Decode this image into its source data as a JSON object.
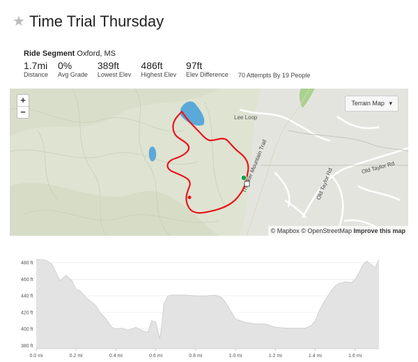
{
  "page": {
    "title": "Time Trial Thursday",
    "star_icon": "star-icon"
  },
  "segment": {
    "kind": "Ride Segment",
    "location": "Oxford, MS"
  },
  "stats": [
    {
      "value": "1.7mi",
      "label": "Distance"
    },
    {
      "value": "0%",
      "label": "Avg Grade"
    },
    {
      "value": "389ft",
      "label": "Lowest Elev"
    },
    {
      "value": "486ft",
      "label": "Highest Elev"
    },
    {
      "value": "97ft",
      "label": "Elev Difference"
    }
  ],
  "attempts": "70 Attempts By 19 People",
  "map": {
    "zoom_in": "+",
    "zoom_out": "−",
    "map_type": "Terrain Map",
    "roads": [
      "Lee Loop",
      "Thacker Mountain Trail",
      "Old Taylor Rd",
      "Old Taylor Rd"
    ],
    "attribution": {
      "mapbox": "© Mapbox",
      "osm": "© OpenStreetMap",
      "improve": "Improve this map"
    },
    "route_color": "#e8141b",
    "water_color": "#5aa9d9"
  },
  "chart_data": {
    "type": "area",
    "title": "",
    "xlabel": "",
    "ylabel": "",
    "x_ticks": [
      "0.0 mi",
      "0.2 mi",
      "0.4 mi",
      "0.6 mi",
      "0.8 mi",
      "1.0 mi",
      "1.2 mi",
      "1.4 mi",
      "1.6 mi"
    ],
    "y_ticks": [
      "380 ft",
      "400 ft",
      "420 ft",
      "440 ft",
      "460 ft",
      "480 ft"
    ],
    "xlim": [
      0,
      1.72
    ],
    "ylim": [
      376,
      484
    ],
    "fill_color": "#e3e3e3",
    "line_color": "#c9c9c9",
    "x": [
      0,
      0.02,
      0.05,
      0.08,
      0.1,
      0.12,
      0.15,
      0.18,
      0.2,
      0.22,
      0.25,
      0.28,
      0.3,
      0.32,
      0.35,
      0.38,
      0.4,
      0.43,
      0.46,
      0.5,
      0.53,
      0.56,
      0.58,
      0.6,
      0.61,
      0.62,
      0.63,
      0.64,
      0.66,
      0.68,
      0.7,
      0.75,
      0.8,
      0.85,
      0.9,
      0.93,
      0.95,
      1.0,
      1.05,
      1.1,
      1.15,
      1.2,
      1.25,
      1.3,
      1.35,
      1.38,
      1.4,
      1.42,
      1.45,
      1.48,
      1.5,
      1.52,
      1.55,
      1.58,
      1.6,
      1.62,
      1.64,
      1.66,
      1.68,
      1.7,
      1.72
    ],
    "y": [
      484,
      484,
      483,
      478,
      468,
      458,
      465,
      458,
      448,
      446,
      438,
      432,
      428,
      420,
      412,
      402,
      400,
      401,
      398,
      402,
      398,
      396,
      410,
      408,
      398,
      388,
      405,
      430,
      440,
      441,
      441,
      441,
      440,
      440,
      441,
      438,
      432,
      412,
      408,
      406,
      406,
      402,
      401,
      401,
      401,
      404,
      410,
      422,
      435,
      446,
      452,
      455,
      457,
      456,
      460,
      468,
      478,
      482,
      478,
      474,
      484
    ]
  }
}
